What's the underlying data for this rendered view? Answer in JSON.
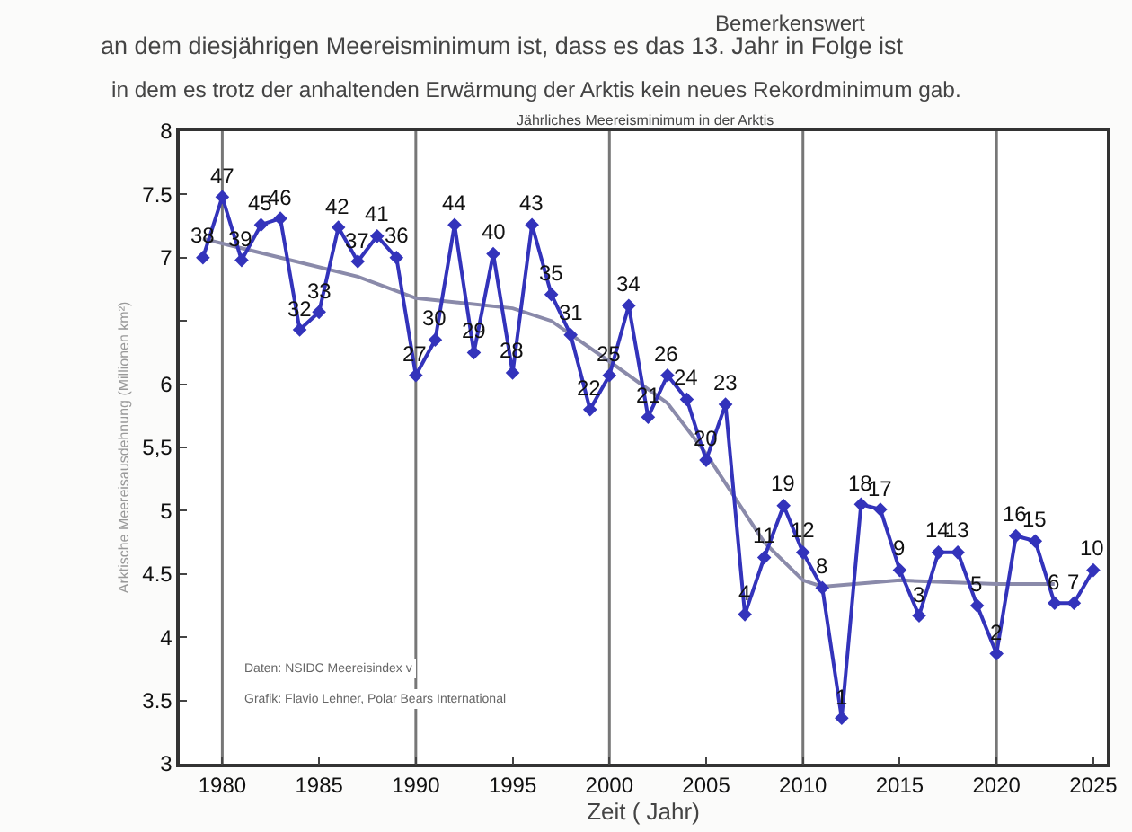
{
  "chart_data": {
    "type": "line",
    "title": "Jährliches Meereisminimum in der Arktis",
    "xlabel": "Zeit ( Jahr)",
    "ylabel": "Arktische Meereisausdehnung (Millionen km²)",
    "annotations": [
      "Bemerkenswert",
      "an dem diesjährigen Meereisminimum ist, dass es das 13. Jahr in Folge ist",
      "in dem es trotz der anhaltenden Erwärmung der Arktis kein neues Rekordminimum gab.",
      "Daten: NSIDC Meereisindex v",
      "Grafik: Flavio Lehner, Polar Bears International",
      {
        "text": "38",
        "x": 1979,
        "y": 7.0
      },
      {
        "text": "47",
        "x": 1980,
        "y": 7.48
      },
      {
        "text": "39",
        "x": 1981,
        "y": 6.98
      },
      {
        "text": "45",
        "x": 1982,
        "y": 7.26
      },
      {
        "text": "46",
        "x": 1983,
        "y": 7.31
      },
      {
        "text": "32",
        "x": 1984,
        "y": 6.43
      },
      {
        "text": "33",
        "x": 1985,
        "y": 6.57
      },
      {
        "text": "42",
        "x": 1986,
        "y": 7.24
      },
      {
        "text": "37",
        "x": 1987,
        "y": 6.97
      },
      {
        "text": "41",
        "x": 1988,
        "y": 7.17
      },
      {
        "text": "36",
        "x": 1989,
        "y": 7.0
      },
      {
        "text": "27",
        "x": 1990,
        "y": 6.07
      },
      {
        "text": "30",
        "x": 1991,
        "y": 6.35
      },
      {
        "text": "44",
        "x": 1992,
        "y": 7.26
      },
      {
        "text": "29",
        "x": 1993,
        "y": 6.25
      },
      {
        "text": "40",
        "x": 1994,
        "y": 7.03
      },
      {
        "text": "28",
        "x": 1995,
        "y": 6.09
      },
      {
        "text": "43",
        "x": 1996,
        "y": 7.26
      },
      {
        "text": "35",
        "x": 1997,
        "y": 6.71
      },
      {
        "text": "31",
        "x": 1998,
        "y": 6.39
      },
      {
        "text": "22",
        "x": 1999,
        "y": 5.8
      },
      {
        "text": "25",
        "x": 2000,
        "y": 6.07
      },
      {
        "text": "34",
        "x": 2001,
        "y": 6.62
      },
      {
        "text": "21",
        "x": 2002,
        "y": 5.74
      },
      {
        "text": "26",
        "x": 2003,
        "y": 6.07
      },
      {
        "text": "24",
        "x": 2004,
        "y": 5.88
      },
      {
        "text": "20",
        "x": 2005,
        "y": 5.4
      },
      {
        "text": "23",
        "x": 2006,
        "y": 5.84
      },
      {
        "text": "4",
        "x": 2007,
        "y": 4.18
      },
      {
        "text": "11",
        "x": 2008,
        "y": 4.63
      },
      {
        "text": "19",
        "x": 2009,
        "y": 5.04
      },
      {
        "text": "12",
        "x": 2010,
        "y": 4.67
      },
      {
        "text": "8",
        "x": 2011,
        "y": 4.39
      },
      {
        "text": "1",
        "x": 2012,
        "y": 3.36
      },
      {
        "text": "18",
        "x": 2013,
        "y": 5.05
      },
      {
        "text": "17",
        "x": 2014,
        "y": 5.01
      },
      {
        "text": "9",
        "x": 2015,
        "y": 4.53
      },
      {
        "text": "3",
        "x": 2016,
        "y": 4.17
      },
      {
        "text": "14",
        "x": 2017,
        "y": 4.67
      },
      {
        "text": "13",
        "x": 2018,
        "y": 4.67
      },
      {
        "text": "5",
        "x": 2019,
        "y": 4.25
      },
      {
        "text": "2",
        "x": 2020,
        "y": 3.87
      },
      {
        "text": "16",
        "x": 2021,
        "y": 4.8
      },
      {
        "text": "15",
        "x": 2022,
        "y": 4.76
      },
      {
        "text": "6",
        "x": 2023,
        "y": 4.27
      },
      {
        "text": "7",
        "x": 2024,
        "y": 4.27
      },
      {
        "text": "10",
        "x": 2025,
        "y": 4.53
      }
    ],
    "x": [
      1979,
      1980,
      1981,
      1982,
      1983,
      1984,
      1985,
      1986,
      1987,
      1988,
      1989,
      1990,
      1991,
      1992,
      1993,
      1994,
      1995,
      1996,
      1997,
      1998,
      1999,
      2000,
      2001,
      2002,
      2003,
      2004,
      2005,
      2006,
      2007,
      2008,
      2009,
      2010,
      2011,
      2012,
      2013,
      2014,
      2015,
      2016,
      2017,
      2018,
      2019,
      2020,
      2021,
      2022,
      2023,
      2024,
      2025
    ],
    "series": [
      {
        "color": "#3333bb",
        "marker": "diamond",
        "values": [
          7.0,
          7.48,
          6.98,
          7.26,
          7.31,
          6.43,
          6.57,
          7.24,
          6.97,
          7.17,
          7.0,
          6.07,
          6.35,
          7.26,
          6.25,
          7.03,
          6.09,
          7.26,
          6.71,
          6.39,
          5.8,
          6.07,
          6.62,
          5.74,
          6.07,
          5.88,
          5.4,
          5.84,
          4.18,
          4.63,
          5.04,
          4.67,
          4.39,
          3.36,
          5.05,
          5.01,
          4.53,
          4.17,
          4.67,
          4.67,
          4.25,
          3.87,
          4.8,
          4.76,
          4.27,
          4.27,
          4.53
        ]
      },
      {
        "type": "line",
        "color": "#8a8aaa",
        "x": [
          1979,
          1983,
          1987,
          1990,
          1995,
          1997,
          2000,
          2003,
          2005,
          2008,
          2010,
          2011,
          2015,
          2020,
          2023
        ],
        "values": [
          7.15,
          7.0,
          6.85,
          6.68,
          6.6,
          6.5,
          6.18,
          5.85,
          5.45,
          4.75,
          4.45,
          4.4,
          4.45,
          4.42,
          4.42
        ]
      }
    ],
    "xlim": [
      1977.8,
      2025.7
    ],
    "xticks": [
      1980,
      1985,
      1990,
      1995,
      2000,
      2005,
      2010,
      2015,
      2020,
      2025
    ],
    "ylim": [
      3,
      8
    ],
    "yticks": [
      3,
      3.5,
      4,
      4.5,
      5,
      {
        "value": 5.5,
        "label": "5,5"
      },
      6,
      {
        "value": 6.5,
        "label": null
      },
      7,
      7.5,
      8
    ],
    "ref_lines": [
      {
        "axis": "x",
        "value": 1980,
        "color": "#777777"
      },
      {
        "axis": "x",
        "value": 1990,
        "color": "#777777"
      },
      {
        "axis": "x",
        "value": 2000,
        "color": "#777777"
      },
      {
        "axis": "x",
        "value": 2010,
        "color": "#777777"
      },
      {
        "axis": "x",
        "value": 2020,
        "color": "#777777"
      }
    ],
    "grid": false
  }
}
